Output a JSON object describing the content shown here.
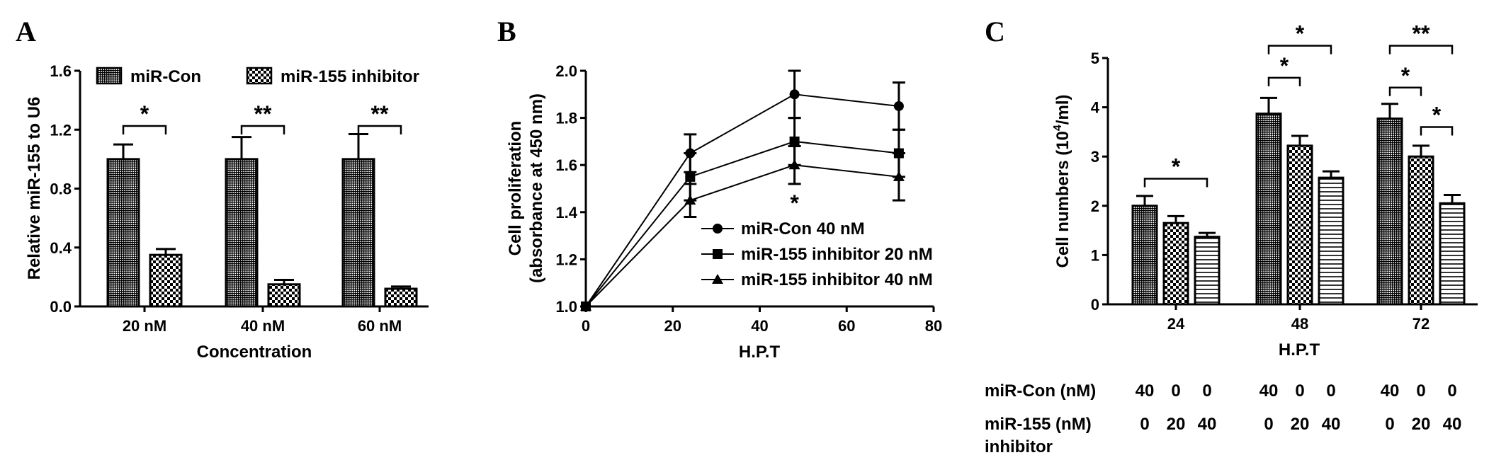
{
  "panels": {
    "a": {
      "letter": "A"
    },
    "b": {
      "letter": "B"
    },
    "c": {
      "letter": "C"
    }
  },
  "chart_data": [
    {
      "panel": "A",
      "type": "bar",
      "categories": [
        "20 nM",
        "40 nM",
        "60 nM"
      ],
      "xlabel": "Concentration",
      "ylabel": "Relative miR-155 to U6",
      "ylim": [
        0,
        1.6
      ],
      "yticks": [
        "0.0",
        "0.4",
        "0.8",
        "1.2",
        "1.6"
      ],
      "series": [
        {
          "name": "miR-Con",
          "values": [
            1.0,
            1.0,
            1.0
          ],
          "errors": [
            0.1,
            0.15,
            0.17
          ]
        },
        {
          "name": "miR-155 inhibitor",
          "values": [
            0.35,
            0.15,
            0.12
          ],
          "errors": [
            0.04,
            0.03,
            0.015
          ]
        }
      ],
      "significance": [
        "*",
        "**",
        "**"
      ],
      "legend": "top"
    },
    {
      "panel": "B",
      "type": "line",
      "x": [
        0,
        24,
        48,
        72
      ],
      "xlabel": "H.P.T",
      "ylabel_lines": [
        "Cell proliferation",
        "(absorbance at 450 nm)"
      ],
      "xlim": [
        0,
        80
      ],
      "ylim": [
        1.0,
        2.0
      ],
      "xticks": [
        "0",
        "20",
        "40",
        "60",
        "80"
      ],
      "yticks": [
        "1.0",
        "1.2",
        "1.4",
        "1.6",
        "1.8",
        "2.0"
      ],
      "series": [
        {
          "name": "miR-Con 40 nM",
          "marker": "circle",
          "values": [
            1.0,
            1.65,
            1.9,
            1.85
          ],
          "errors": [
            0,
            0.08,
            0.1,
            0.1
          ]
        },
        {
          "name": "miR-155 inhibitor 20 nM",
          "marker": "square",
          "values": [
            1.0,
            1.55,
            1.7,
            1.65
          ],
          "errors": [
            0,
            0.1,
            0.1,
            0.1
          ]
        },
        {
          "name": "miR-155 inhibitor 40 nM",
          "marker": "triangle",
          "values": [
            1.0,
            1.45,
            1.6,
            1.55
          ],
          "errors": [
            0,
            0.07,
            0.08,
            0.1
          ]
        }
      ],
      "annotation": "*",
      "annotation_x": 48
    },
    {
      "panel": "C",
      "type": "bar",
      "categories": [
        "24",
        "48",
        "72"
      ],
      "xlabel": "H.P.T",
      "ylabel_main": "Cell numbers (10",
      "ylabel_sup": "4",
      "ylabel_end": "/ml)",
      "ylim": [
        0,
        5
      ],
      "yticks": [
        "0",
        "1",
        "2",
        "3",
        "4",
        "5"
      ],
      "series": [
        {
          "pattern": "grid",
          "values": [
            2.0,
            3.87,
            3.77
          ],
          "errors": [
            0.2,
            0.32,
            0.3
          ]
        },
        {
          "pattern": "checker",
          "values": [
            1.65,
            3.22,
            3.0
          ],
          "errors": [
            0.14,
            0.2,
            0.22
          ]
        },
        {
          "pattern": "hlines",
          "values": [
            1.37,
            2.57,
            2.05
          ],
          "errors": [
            0.08,
            0.13,
            0.17
          ]
        }
      ],
      "brackets": [
        {
          "group": 0,
          "from": 0,
          "to": 2,
          "level": 2.55,
          "label": "*"
        },
        {
          "group": 1,
          "from": 0,
          "to": 1,
          "level": 4.6,
          "label": "*"
        },
        {
          "group": 1,
          "from": 0,
          "to": 2,
          "level": 5.25,
          "label": "*"
        },
        {
          "group": 2,
          "from": 0,
          "to": 1,
          "level": 4.4,
          "label": "*"
        },
        {
          "group": 2,
          "from": 0,
          "to": 2,
          "level": 5.25,
          "label": "**"
        },
        {
          "group": 2,
          "from": 1,
          "to": 2,
          "level": 3.6,
          "label": "*"
        }
      ],
      "table": {
        "row1_label": "miR-Con (nM)",
        "row1_values": [
          "40",
          "0",
          "0",
          "40",
          "0",
          "0",
          "40",
          "0",
          "0"
        ],
        "row2_label_line1": "miR-155  (nM)",
        "row2_label_line2": "inhibitor",
        "row2_values": [
          "0",
          "20",
          "40",
          "0",
          "20",
          "40",
          "0",
          "20",
          "40"
        ]
      }
    }
  ]
}
